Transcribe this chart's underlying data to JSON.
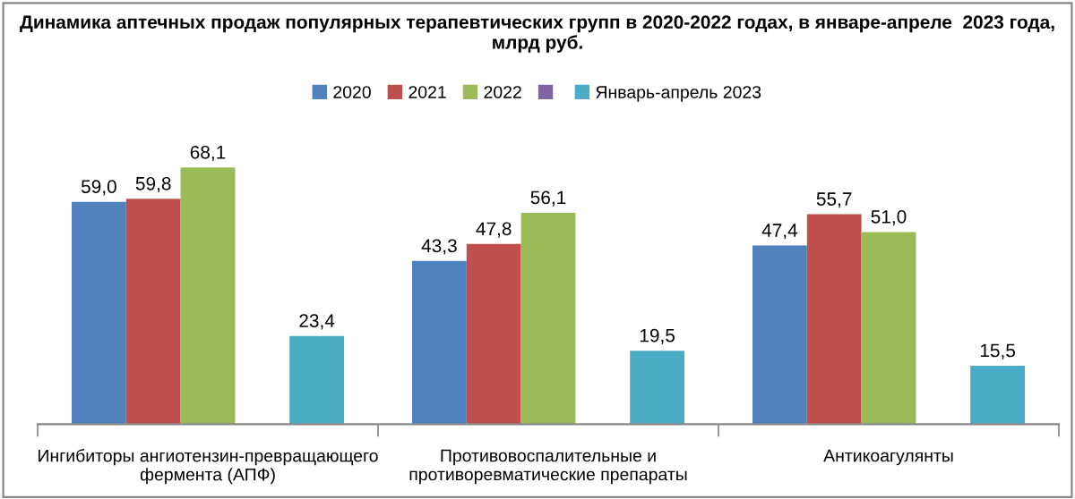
{
  "chart_data": {
    "type": "bar",
    "title": "Динамика аптечных продаж популярных терапевтических групп в 2020-2022 годах, в январе-апреле  2023 года, млрд руб.",
    "categories": [
      "Ингибиторы ангиотензин-превращающего фермента (АПФ)",
      "Противовоспалительные и противоревматические препараты",
      "Антикоагулянты"
    ],
    "series": [
      {
        "name": "2020",
        "color": "#4f81bd",
        "values": [
          59.0,
          43.3,
          47.4
        ],
        "value_labels": [
          "59,0",
          "43,3",
          "47,4"
        ]
      },
      {
        "name": "2021",
        "color": "#c0504d",
        "values": [
          59.8,
          47.8,
          55.7
        ],
        "value_labels": [
          "59,8",
          "47,8",
          "55,7"
        ]
      },
      {
        "name": "2022",
        "color": "#9bbb59",
        "values": [
          68.1,
          56.1,
          51.0
        ],
        "value_labels": [
          "68,1",
          "56,1",
          "51,0"
        ]
      },
      {
        "color": "#8064a2",
        "values": [
          null,
          null,
          null
        ]
      },
      {
        "name": "Январь-апрель 2023",
        "color": "#4bacc6",
        "values": [
          23.4,
          19.5,
          15.5
        ],
        "value_labels": [
          "23,4",
          "19,5",
          "15,5"
        ]
      }
    ],
    "legend": "top",
    "grid": false
  }
}
